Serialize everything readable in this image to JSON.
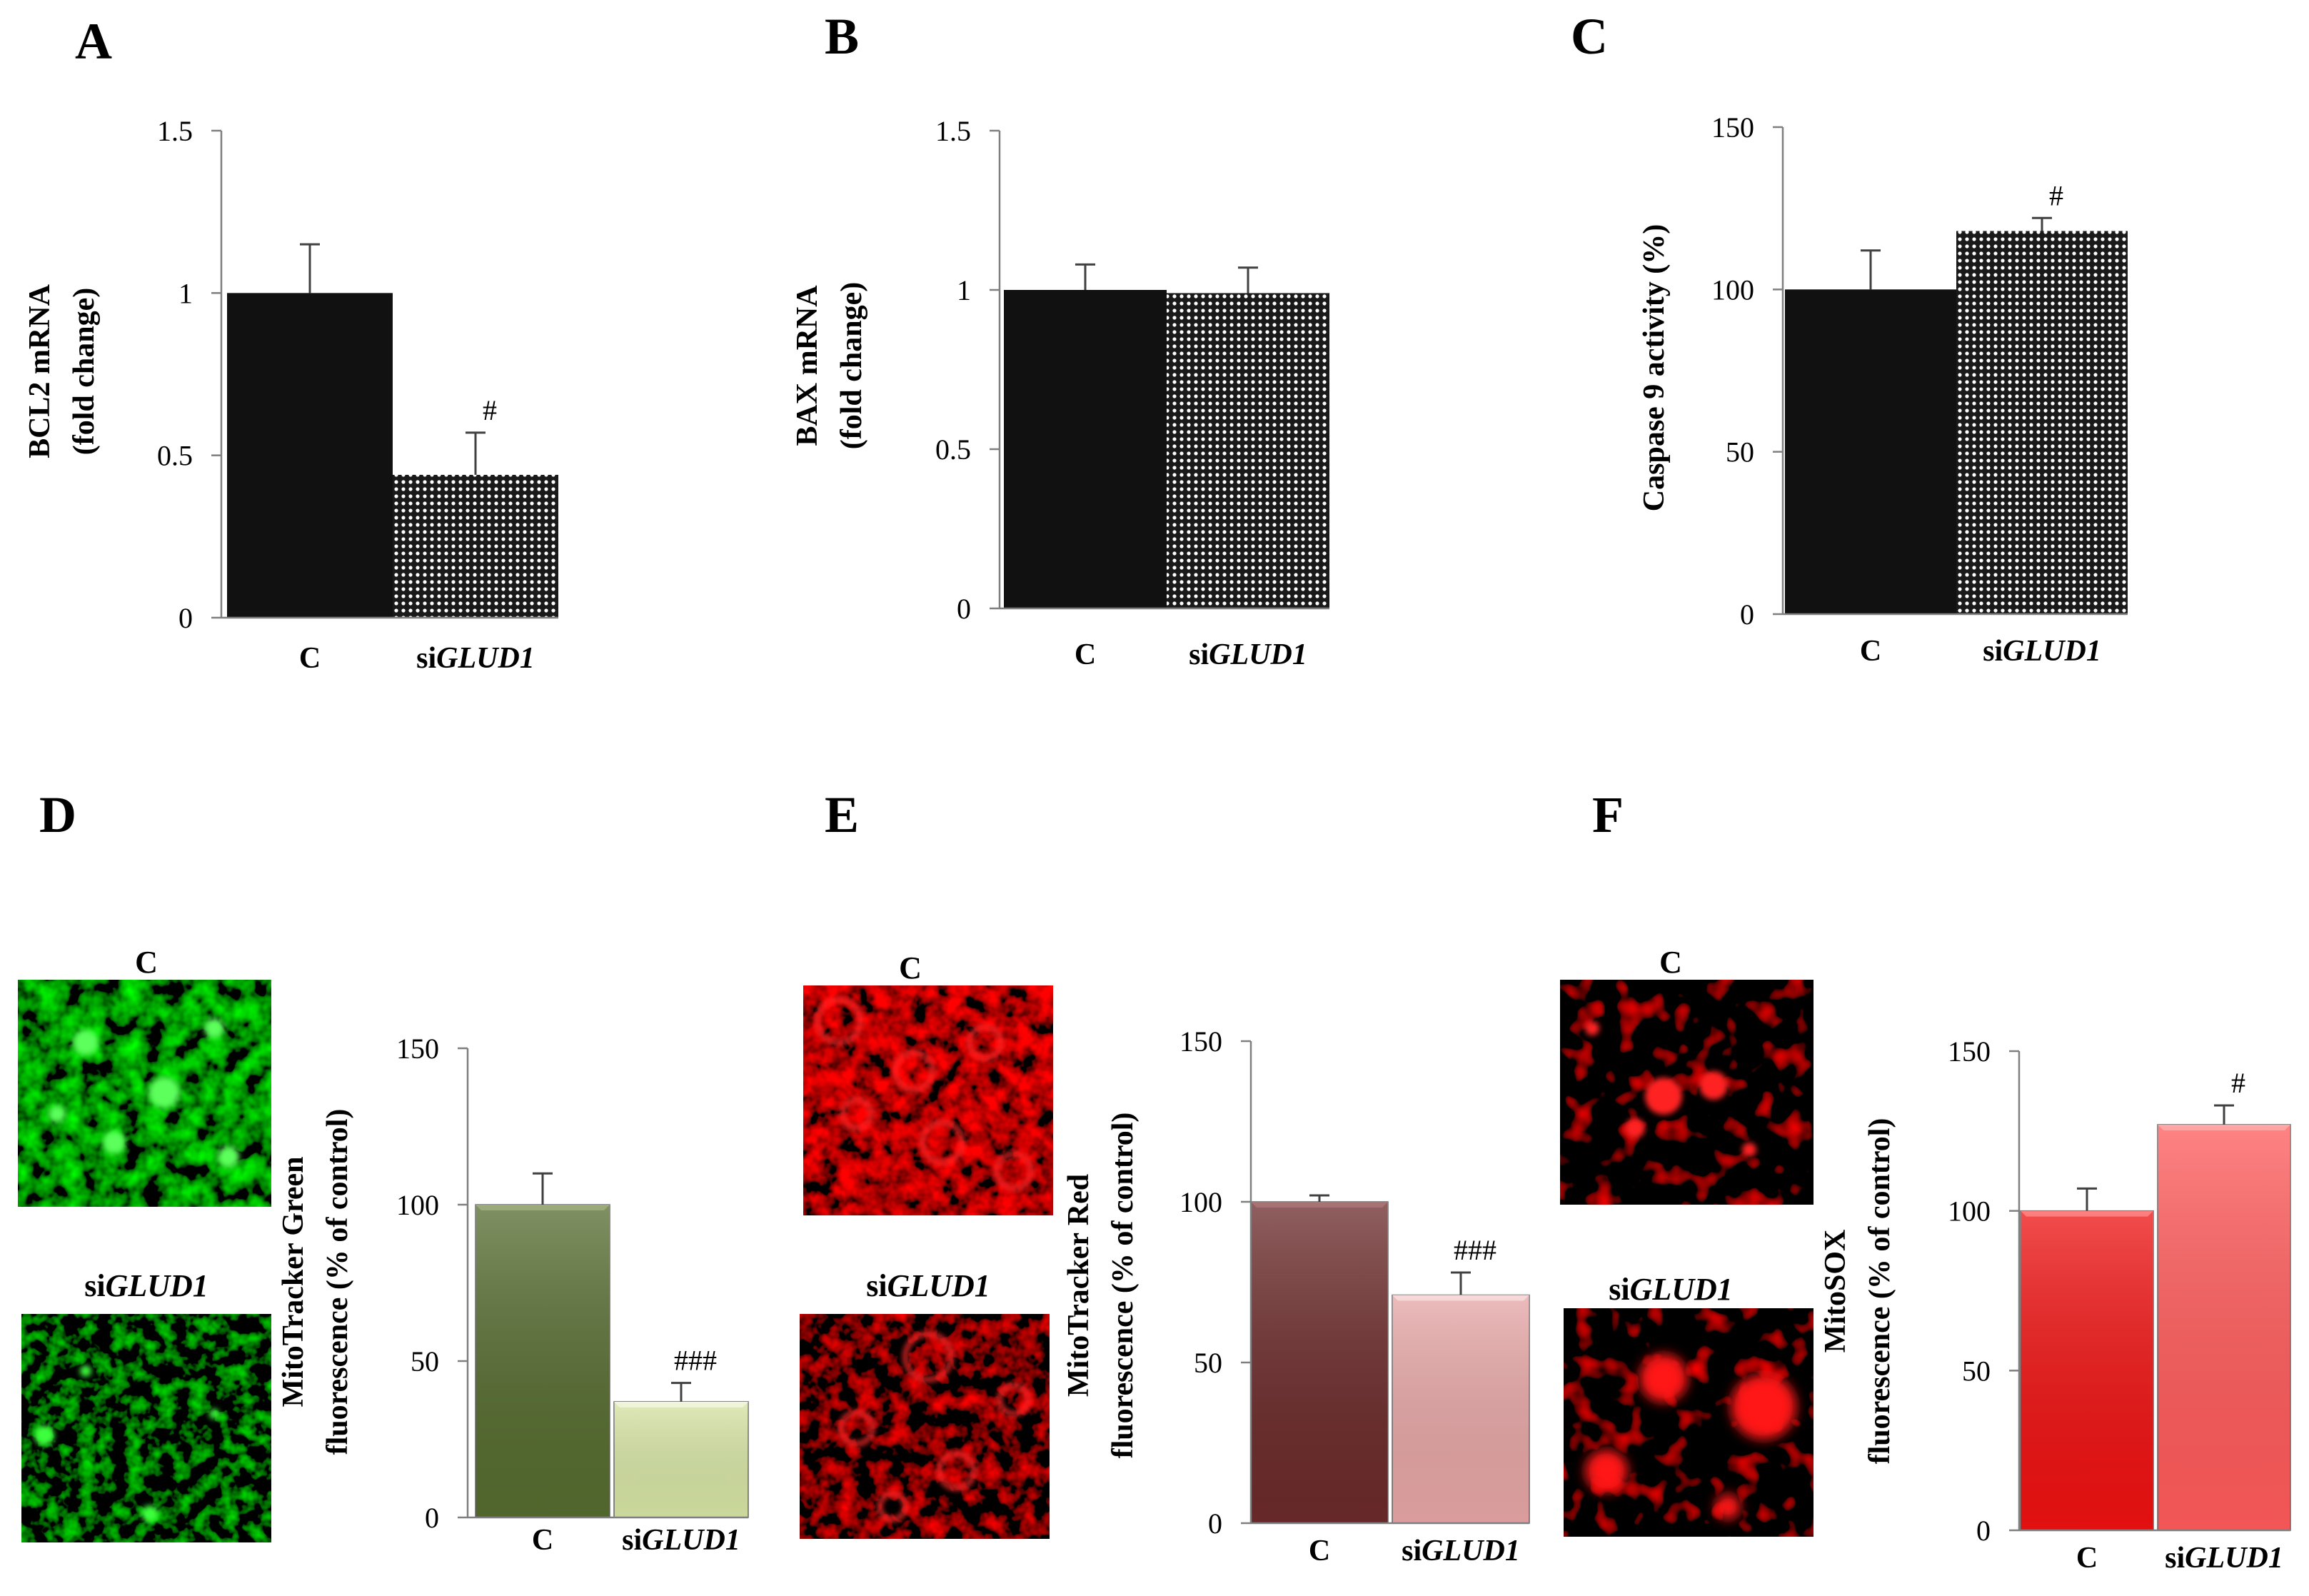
{
  "panels": [
    {
      "letter": "A"
    },
    {
      "letter": "B"
    },
    {
      "letter": "C"
    },
    {
      "letter": "D"
    },
    {
      "letter": "E"
    },
    {
      "letter": "F"
    }
  ],
  "chart_data": [
    {
      "id": "A",
      "type": "bar",
      "categories": [
        "C",
        "siGLUD1"
      ],
      "category_parts": [
        {
          "plain": "C",
          "italic": ""
        },
        {
          "plain": "si",
          "italic": "GLUD1"
        }
      ],
      "values": [
        1.0,
        0.44
      ],
      "errors": [
        0.15,
        0.13
      ],
      "significance": [
        "",
        "#"
      ],
      "ylabel": [
        "BCL2 mRNA",
        "(fold change)"
      ],
      "ylim": [
        0,
        1.5
      ],
      "yticks": [
        0,
        0.5,
        1,
        1.5
      ],
      "ytick_labels": [
        "0",
        "0.5",
        "1",
        "1.5"
      ],
      "fills": [
        "black",
        "dots"
      ],
      "colors": {
        "bar1": "#111111",
        "dot_bg": "#1a1a1a",
        "dot_fg": "#ffffff"
      }
    },
    {
      "id": "B",
      "type": "bar",
      "categories": [
        "C",
        "siGLUD1"
      ],
      "category_parts": [
        {
          "plain": "C",
          "italic": ""
        },
        {
          "plain": "si",
          "italic": "GLUD1"
        }
      ],
      "values": [
        1.0,
        0.99
      ],
      "errors": [
        0.08,
        0.08
      ],
      "significance": [
        "",
        ""
      ],
      "ylabel": [
        "BAX mRNA",
        "(fold change)"
      ],
      "ylim": [
        0,
        1.5
      ],
      "yticks": [
        0,
        0.5,
        1,
        1.5
      ],
      "ytick_labels": [
        "0",
        "0.5",
        "1",
        "1.5"
      ],
      "fills": [
        "black",
        "dots"
      ],
      "colors": {
        "bar1": "#111111",
        "dot_bg": "#1a1a1a",
        "dot_fg": "#ffffff"
      }
    },
    {
      "id": "C",
      "type": "bar",
      "categories": [
        "C",
        "siGLUD1"
      ],
      "category_parts": [
        {
          "plain": "C",
          "italic": ""
        },
        {
          "plain": "si",
          "italic": "GLUD1"
        }
      ],
      "values": [
        100,
        118
      ],
      "errors": [
        12,
        4
      ],
      "significance": [
        "",
        "#"
      ],
      "ylabel": [
        "Caspase 9 activity (%)"
      ],
      "ylim": [
        0,
        150
      ],
      "yticks": [
        0,
        50,
        100,
        150
      ],
      "ytick_labels": [
        "0",
        "50",
        "100",
        "150"
      ],
      "fills": [
        "black",
        "dots"
      ],
      "colors": {
        "bar1": "#111111",
        "dot_bg": "#1a1a1a",
        "dot_fg": "#ffffff"
      }
    },
    {
      "id": "D",
      "type": "bar",
      "categories": [
        "C",
        "siGLUD1"
      ],
      "category_parts": [
        {
          "plain": "C",
          "italic": ""
        },
        {
          "plain": "si",
          "italic": "GLUD1"
        }
      ],
      "values": [
        100,
        37
      ],
      "errors": [
        10,
        6
      ],
      "significance": [
        "",
        "###"
      ],
      "ylabel": [
        "MitoTracker Green",
        "fluorescence (% of control)"
      ],
      "ylim": [
        0,
        150
      ],
      "yticks": [
        0,
        50,
        100,
        150
      ],
      "ytick_labels": [
        "0",
        "50",
        "100",
        "150"
      ],
      "fills": [
        "solid",
        "solid"
      ],
      "colors": {
        "bar1": "#556b2f",
        "bar1_top": "#7a8f4f",
        "bar2": "#d6e4a4",
        "bar2_top": "#ecf3cf"
      },
      "images": [
        "C",
        "siGLUD1"
      ]
    },
    {
      "id": "E",
      "type": "bar",
      "categories": [
        "C",
        "siGLUD1"
      ],
      "category_parts": [
        {
          "plain": "C",
          "italic": ""
        },
        {
          "plain": "si",
          "italic": "GLUD1"
        }
      ],
      "values": [
        100,
        71
      ],
      "errors": [
        2,
        7
      ],
      "significance": [
        "",
        "###"
      ],
      "ylabel": [
        "MitoTracker Red",
        "fluorescence (% of control)"
      ],
      "ylim": [
        0,
        150
      ],
      "yticks": [
        0,
        50,
        100,
        150
      ],
      "ytick_labels": [
        "0",
        "50",
        "100",
        "150"
      ],
      "fills": [
        "solid",
        "solid"
      ],
      "colors": {
        "bar1": "#6b2a2a",
        "bar1_top": "#8c4545",
        "bar2": "#e6a5a5",
        "bar2_top": "#f4cccc"
      },
      "images": [
        "C",
        "siGLUD1"
      ]
    },
    {
      "id": "F",
      "type": "bar",
      "categories": [
        "C",
        "siGLUD1"
      ],
      "category_parts": [
        {
          "plain": "C",
          "italic": ""
        },
        {
          "plain": "si",
          "italic": "GLUD1"
        }
      ],
      "values": [
        100,
        127
      ],
      "errors": [
        7,
        6
      ],
      "significance": [
        "",
        "#"
      ],
      "ylabel": [
        "MitoSOX",
        "fluorescence (% of control)"
      ],
      "ylim": [
        0,
        150
      ],
      "yticks": [
        0,
        50,
        100,
        150
      ],
      "ytick_labels": [
        "0",
        "50",
        "100",
        "150"
      ],
      "fills": [
        "solid",
        "solid"
      ],
      "colors": {
        "bar1": "#ee1111",
        "bar1_top": "#ff5555",
        "bar2": "#ff5a5a",
        "bar2_top": "#ff8a8a"
      },
      "images": [
        "C",
        "siGLUD1"
      ]
    }
  ],
  "image_colors": {
    "green": "#2ee02e",
    "red": "#ff1a1a"
  }
}
